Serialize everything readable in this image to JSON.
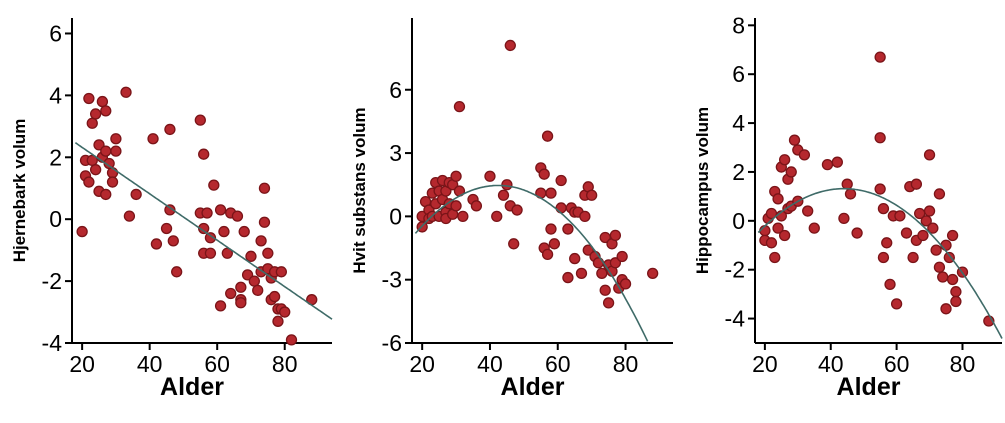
{
  "chart_data": [
    {
      "type": "scatter",
      "xlabel": "Alder",
      "ylabel": "Hjernebark volum",
      "xlim": [
        17,
        94
      ],
      "ylim": [
        -4,
        6.5
      ],
      "xticks": [
        20,
        40,
        60,
        80
      ],
      "yticks": [
        -4,
        -2,
        0,
        2,
        4,
        6
      ],
      "point_color": "#b5282e",
      "line_color": "#3f6b68",
      "fit": {
        "type": "linear",
        "coef": [
          3.82,
          -0.075
        ]
      },
      "points": [
        [
          20,
          -0.4
        ],
        [
          21,
          1.9
        ],
        [
          21,
          1.4
        ],
        [
          22,
          3.9
        ],
        [
          22,
          1.2
        ],
        [
          23,
          3.1
        ],
        [
          23,
          1.9
        ],
        [
          24,
          3.4
        ],
        [
          24,
          1.6
        ],
        [
          25,
          2.4
        ],
        [
          25,
          0.9
        ],
        [
          26,
          3.8
        ],
        [
          26,
          2.0
        ],
        [
          27,
          3.5
        ],
        [
          27,
          2.2
        ],
        [
          27,
          0.8
        ],
        [
          28,
          1.8
        ],
        [
          29,
          1.5
        ],
        [
          29,
          1.2
        ],
        [
          30,
          2.6
        ],
        [
          30,
          2.2
        ],
        [
          33,
          4.1
        ],
        [
          34,
          0.1
        ],
        [
          36,
          0.8
        ],
        [
          41,
          2.6
        ],
        [
          42,
          -0.8
        ],
        [
          45,
          -0.3
        ],
        [
          46,
          2.9
        ],
        [
          46,
          0.3
        ],
        [
          47,
          -0.7
        ],
        [
          48,
          -1.7
        ],
        [
          55,
          3.2
        ],
        [
          55,
          0.2
        ],
        [
          56,
          2.1
        ],
        [
          56,
          -0.3
        ],
        [
          56,
          -1.1
        ],
        [
          57,
          0.2
        ],
        [
          58,
          -0.6
        ],
        [
          58,
          -1.1
        ],
        [
          59,
          1.1
        ],
        [
          61,
          0.3
        ],
        [
          61,
          -2.8
        ],
        [
          62,
          -0.4
        ],
        [
          63,
          -1.1
        ],
        [
          64,
          0.2
        ],
        [
          64,
          -2.4
        ],
        [
          66,
          0.1
        ],
        [
          67,
          -2.2
        ],
        [
          67,
          -2.6
        ],
        [
          67,
          -2.7
        ],
        [
          68,
          -0.4
        ],
        [
          69,
          -1.8
        ],
        [
          70,
          -1.2
        ],
        [
          71,
          -2.0
        ],
        [
          72,
          -2.3
        ],
        [
          73,
          -0.7
        ],
        [
          73,
          -1.7
        ],
        [
          74,
          -0.1
        ],
        [
          74,
          1.0
        ],
        [
          75,
          -1.1
        ],
        [
          75,
          -1.6
        ],
        [
          76,
          -1.9
        ],
        [
          76,
          -2.6
        ],
        [
          77,
          -1.7
        ],
        [
          77,
          -2.5
        ],
        [
          78,
          -2.9
        ],
        [
          78,
          -3.3
        ],
        [
          79,
          -1.7
        ],
        [
          79,
          -2.9
        ],
        [
          80,
          -3.0
        ],
        [
          82,
          -3.9
        ],
        [
          88,
          -2.6
        ]
      ]
    },
    {
      "type": "scatter",
      "xlabel": "Alder",
      "ylabel": "Hvit substans volum",
      "xlim": [
        17,
        94
      ],
      "ylim": [
        -6,
        9.4
      ],
      "xticks": [
        20,
        40,
        60,
        80
      ],
      "yticks": [
        -6,
        -3,
        0,
        3,
        6
      ],
      "point_color": "#b5282e",
      "line_color": "#3f6b68",
      "fit": {
        "type": "quadratic",
        "coef": [
          -5.39,
          0.323,
          -0.003805
        ]
      },
      "points": [
        [
          20,
          0.0
        ],
        [
          20,
          -0.5
        ],
        [
          21,
          0.7
        ],
        [
          22,
          0.3
        ],
        [
          22,
          -0.1
        ],
        [
          23,
          1.1
        ],
        [
          23,
          0.0
        ],
        [
          24,
          1.6
        ],
        [
          24,
          0.6
        ],
        [
          25,
          1.2
        ],
        [
          25,
          0.0
        ],
        [
          26,
          1.7
        ],
        [
          26,
          0.8
        ],
        [
          27,
          1.2
        ],
        [
          27,
          0.2
        ],
        [
          27,
          -0.1
        ],
        [
          28,
          1.6
        ],
        [
          28,
          0.6
        ],
        [
          29,
          1.5
        ],
        [
          29,
          0.1
        ],
        [
          30,
          1.9
        ],
        [
          30,
          0.5
        ],
        [
          31,
          5.2
        ],
        [
          31,
          1.2
        ],
        [
          32,
          0.0
        ],
        [
          35,
          0.8
        ],
        [
          36,
          0.5
        ],
        [
          40,
          1.9
        ],
        [
          42,
          0.0
        ],
        [
          44,
          1.0
        ],
        [
          45,
          1.5
        ],
        [
          46,
          8.1
        ],
        [
          46,
          0.5
        ],
        [
          47,
          -1.3
        ],
        [
          48,
          0.3
        ],
        [
          55,
          2.3
        ],
        [
          55,
          1.1
        ],
        [
          56,
          -1.5
        ],
        [
          56,
          2.0
        ],
        [
          57,
          3.8
        ],
        [
          57,
          -1.8
        ],
        [
          58,
          1.1
        ],
        [
          58,
          -0.6
        ],
        [
          59,
          -1.3
        ],
        [
          61,
          1.7
        ],
        [
          61,
          0.4
        ],
        [
          63,
          -0.6
        ],
        [
          63,
          -2.9
        ],
        [
          64,
          0.4
        ],
        [
          65,
          0.2
        ],
        [
          65,
          -2.0
        ],
        [
          66,
          0.2
        ],
        [
          67,
          -2.7
        ],
        [
          68,
          0.0
        ],
        [
          68,
          1.0
        ],
        [
          69,
          1.4
        ],
        [
          69,
          -1.6
        ],
        [
          70,
          1.0
        ],
        [
          71,
          -1.9
        ],
        [
          72,
          -2.2
        ],
        [
          73,
          -2.7
        ],
        [
          74,
          -1.0
        ],
        [
          74,
          -3.5
        ],
        [
          75,
          -2.3
        ],
        [
          75,
          -4.1
        ],
        [
          76,
          -1.3
        ],
        [
          76,
          -2.6
        ],
        [
          77,
          -0.9
        ],
        [
          77,
          -2.2
        ],
        [
          78,
          -3.4
        ],
        [
          79,
          -1.9
        ],
        [
          79,
          -3.0
        ],
        [
          80,
          -3.2
        ],
        [
          88,
          -2.7
        ]
      ]
    },
    {
      "type": "scatter",
      "xlabel": "Alder",
      "ylabel": "Hippocampus volum",
      "xlim": [
        17,
        92
      ],
      "ylim": [
        -5,
        8.3
      ],
      "xticks": [
        20,
        40,
        60,
        80
      ],
      "yticks": [
        -4,
        -2,
        0,
        2,
        4,
        6,
        8
      ],
      "point_color": "#b5282e",
      "line_color": "#3f6b68",
      "fit": {
        "type": "quadratic",
        "coef": [
          -3.83,
          0.234,
          -0.00266
        ]
      },
      "points": [
        [
          20,
          -0.4
        ],
        [
          20,
          -0.8
        ],
        [
          21,
          0.1
        ],
        [
          22,
          -0.9
        ],
        [
          22,
          0.3
        ],
        [
          23,
          1.2
        ],
        [
          23,
          -1.5
        ],
        [
          24,
          -0.3
        ],
        [
          24,
          0.9
        ],
        [
          25,
          2.2
        ],
        [
          25,
          0.2
        ],
        [
          26,
          2.5
        ],
        [
          26,
          -0.6
        ],
        [
          27,
          1.7
        ],
        [
          27,
          0.5
        ],
        [
          28,
          0.6
        ],
        [
          28,
          2.0
        ],
        [
          29,
          3.3
        ],
        [
          30,
          2.9
        ],
        [
          30,
          0.8
        ],
        [
          32,
          2.7
        ],
        [
          33,
          0.4
        ],
        [
          35,
          -0.3
        ],
        [
          39,
          2.3
        ],
        [
          42,
          2.4
        ],
        [
          44,
          0.1
        ],
        [
          45,
          1.5
        ],
        [
          46,
          1.1
        ],
        [
          48,
          -0.5
        ],
        [
          55,
          6.7
        ],
        [
          55,
          3.4
        ],
        [
          55,
          1.3
        ],
        [
          56,
          0.5
        ],
        [
          56,
          -1.5
        ],
        [
          57,
          -0.9
        ],
        [
          58,
          -2.6
        ],
        [
          59,
          0.2
        ],
        [
          60,
          -3.4
        ],
        [
          61,
          0.2
        ],
        [
          63,
          -0.5
        ],
        [
          64,
          1.4
        ],
        [
          65,
          -1.5
        ],
        [
          66,
          -0.8
        ],
        [
          66,
          1.5
        ],
        [
          67,
          0.3
        ],
        [
          68,
          -0.6
        ],
        [
          69,
          0.0
        ],
        [
          70,
          2.7
        ],
        [
          70,
          0.4
        ],
        [
          71,
          -0.3
        ],
        [
          72,
          -1.2
        ],
        [
          73,
          1.1
        ],
        [
          73,
          -1.9
        ],
        [
          74,
          -2.3
        ],
        [
          75,
          -3.6
        ],
        [
          75,
          -1.0
        ],
        [
          76,
          -1.5
        ],
        [
          77,
          -0.6
        ],
        [
          77,
          -2.4
        ],
        [
          78,
          -2.9
        ],
        [
          78,
          -3.3
        ],
        [
          80,
          -2.1
        ],
        [
          88,
          -4.1
        ]
      ]
    }
  ]
}
